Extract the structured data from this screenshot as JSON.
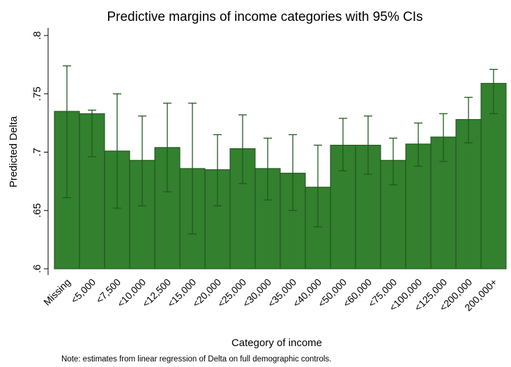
{
  "chart_data": {
    "type": "bar",
    "title": "Predictive margins of income categories with 95% CIs",
    "x_label": "Category of income",
    "y_label": "Predicted Delta",
    "note": "Note: estimates from linear regression of Delta on full demographic controls.",
    "categories": [
      "Missing",
      "<5,000",
      "<7,500",
      "<10,000",
      "<12,500",
      "<15,000",
      "<20,000",
      "<25,000",
      "<30,000",
      "<35,000",
      "<40,000",
      "<50,000",
      "<60,000",
      "<75,000",
      "<100,000",
      "<125,000",
      "<200,000",
      "200,000+"
    ],
    "values": [
      0.735,
      0.733,
      0.701,
      0.693,
      0.704,
      0.686,
      0.685,
      0.703,
      0.686,
      0.682,
      0.67,
      0.706,
      0.706,
      0.693,
      0.707,
      0.713,
      0.728,
      0.759
    ],
    "ci_low": [
      0.661,
      0.696,
      0.652,
      0.654,
      0.666,
      0.63,
      0.654,
      0.673,
      0.659,
      0.65,
      0.636,
      0.684,
      0.681,
      0.672,
      0.688,
      0.692,
      0.708,
      0.733
    ],
    "ci_high": [
      0.774,
      0.736,
      0.75,
      0.731,
      0.742,
      0.742,
      0.715,
      0.732,
      0.712,
      0.715,
      0.706,
      0.729,
      0.731,
      0.712,
      0.725,
      0.733,
      0.747,
      0.771
    ],
    "color": "#33802f",
    "ylim": [
      0.6,
      0.8
    ],
    "yticks": [
      {
        "value": 0.6,
        "label": ".6"
      },
      {
        "value": 0.65,
        "label": ".65"
      },
      {
        "value": 0.7,
        "label": ".7"
      },
      {
        "value": 0.75,
        "label": ".75"
      },
      {
        "value": 0.8,
        "label": ".8"
      }
    ]
  }
}
